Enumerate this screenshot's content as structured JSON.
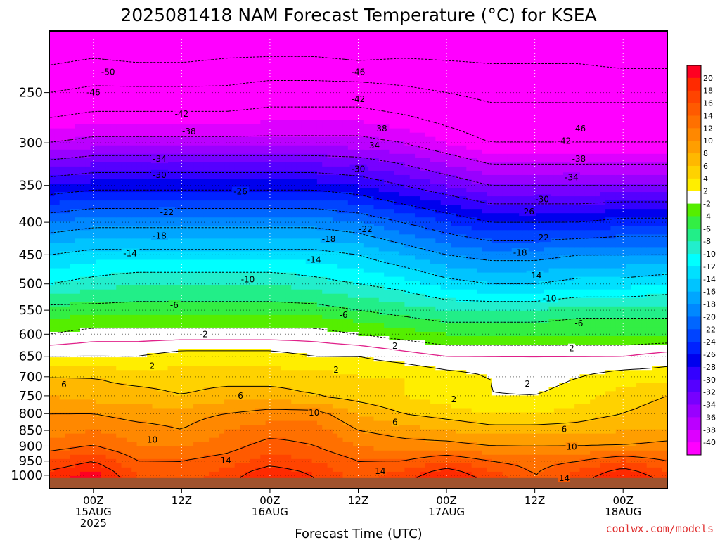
{
  "chart_data": {
    "type": "heatmap",
    "title": "2025081418 NAM Forecast Temperature (°C) for KSEA",
    "xlabel": "Forecast Time (UTC)",
    "ylabel": "",
    "watermark": "coolwx.com/models",
    "x_range_hours": [
      0,
      84
    ],
    "x_ticks": [
      {
        "hour": 6,
        "lines": [
          "00Z",
          "15AUG",
          "2025"
        ]
      },
      {
        "hour": 18,
        "lines": [
          "12Z"
        ]
      },
      {
        "hour": 30,
        "lines": [
          "00Z",
          "16AUG"
        ]
      },
      {
        "hour": 42,
        "lines": [
          "12Z"
        ]
      },
      {
        "hour": 54,
        "lines": [
          "00Z",
          "17AUG"
        ]
      },
      {
        "hour": 66,
        "lines": [
          "12Z"
        ]
      },
      {
        "hour": 78,
        "lines": [
          "00Z",
          "18AUG"
        ]
      }
    ],
    "y_scale": "log-pressure",
    "y_range_hPa": [
      200,
      1050
    ],
    "y_ticks": [
      "250",
      "300",
      "350",
      "400",
      "450",
      "500",
      "550",
      "600",
      "650",
      "700",
      "750",
      "800",
      "850",
      "900",
      "950",
      "1000"
    ],
    "y_tick_values": [
      250,
      300,
      350,
      400,
      450,
      500,
      550,
      600,
      650,
      700,
      750,
      800,
      850,
      900,
      950,
      1000
    ],
    "grid": true,
    "surface_color": "#a0522d",
    "colorbar": {
      "placement": "right",
      "labels": [
        "20",
        "18",
        "16",
        "14",
        "12",
        "10",
        "8",
        "6",
        "4",
        "2",
        "-2",
        "-4",
        "-6",
        "-8",
        "-10",
        "-12",
        "-14",
        "-16",
        "-18",
        "-20",
        "-22",
        "-24",
        "-26",
        "-28",
        "-30",
        "-32",
        "-34",
        "-36",
        "-38",
        "-40"
      ],
      "colors": [
        "#ff0022",
        "#ff2a00",
        "#ff4400",
        "#ff5a00",
        "#ff7000",
        "#ff8800",
        "#ff9e00",
        "#ffb800",
        "#ffd200",
        "#ffee00",
        "#ffffff",
        "#55ee00",
        "#33ee44",
        "#22ee88",
        "#22eecc",
        "#00ffff",
        "#00e0ff",
        "#00c4ff",
        "#00a6ff",
        "#0088ff",
        "#0066ff",
        "#0044ff",
        "#0022ff",
        "#0000ee",
        "#3300ff",
        "#5500ff",
        "#7700ff",
        "#9900ff",
        "#bb00ff",
        "#dd00ff",
        "#ff00ff"
      ]
    },
    "contour_interval_C": 4,
    "series": [
      {
        "level_hPa": 210,
        "values": [
          -53,
          -52,
          -53,
          -53,
          -52,
          -52,
          -52,
          -53,
          -52,
          -52,
          -52,
          -52,
          -52,
          -53,
          -53
        ]
      },
      {
        "level_hPa": 250,
        "values": [
          -46,
          -45,
          -45,
          -45,
          -45,
          -44,
          -44,
          -44,
          -45,
          -46,
          -47,
          -47,
          -47,
          -47,
          -47
        ]
      },
      {
        "level_hPa": 300,
        "values": [
          -38,
          -37,
          -37,
          -37,
          -37,
          -37,
          -37,
          -37,
          -38,
          -40,
          -42,
          -42,
          -42,
          -42,
          -42
        ]
      },
      {
        "level_hPa": 350,
        "values": [
          -28,
          -27,
          -27,
          -27,
          -27,
          -27,
          -27,
          -28,
          -30,
          -32,
          -34,
          -34,
          -34,
          -34,
          -34
        ]
      },
      {
        "level_hPa": 400,
        "values": [
          -20,
          -19,
          -19,
          -19,
          -19,
          -19,
          -19,
          -20,
          -22,
          -24,
          -26,
          -26,
          -26,
          -25,
          -25
        ]
      },
      {
        "level_hPa": 450,
        "values": [
          -14,
          -13,
          -13,
          -13,
          -13,
          -13,
          -13,
          -14,
          -16,
          -18,
          -19,
          -19,
          -18,
          -18,
          -18
        ]
      },
      {
        "level_hPa": 500,
        "values": [
          -10,
          -9,
          -8,
          -8,
          -8,
          -8,
          -9,
          -10,
          -11,
          -13,
          -14,
          -14,
          -13,
          -13,
          -12
        ]
      },
      {
        "level_hPa": 550,
        "values": [
          -5,
          -5,
          -5,
          -5,
          -5,
          -5,
          -5,
          -6,
          -7,
          -8,
          -8,
          -8,
          -7,
          -7,
          -7
        ]
      },
      {
        "level_hPa": 600,
        "values": [
          -2,
          -1,
          -1,
          -1,
          -1,
          -1,
          -1,
          -2,
          -3,
          -4,
          -4,
          -4,
          -4,
          -4,
          -4
        ]
      },
      {
        "level_hPa": 650,
        "values": [
          2,
          2,
          2,
          3,
          3,
          3,
          2,
          2,
          1,
          0,
          0,
          0,
          0,
          0,
          1
        ]
      },
      {
        "level_hPa": 700,
        "values": [
          6,
          6,
          5,
          5,
          5,
          5,
          5,
          4,
          4,
          3,
          2,
          1,
          2,
          3,
          3
        ]
      },
      {
        "level_hPa": 750,
        "values": [
          8,
          7,
          7,
          6,
          7,
          7,
          6,
          5,
          4,
          3,
          2,
          2,
          3,
          5,
          6
        ]
      },
      {
        "level_hPa": 800,
        "values": [
          10,
          10,
          9,
          9,
          10,
          11,
          11,
          8,
          6,
          5,
          4,
          4,
          5,
          6,
          7
        ]
      },
      {
        "level_hPa": 850,
        "values": [
          11,
          12,
          11,
          10,
          12,
          13,
          13,
          10,
          9,
          8,
          7,
          7,
          7,
          8,
          8
        ]
      },
      {
        "level_hPa": 900,
        "values": [
          13,
          14,
          12,
          12,
          13,
          15,
          14,
          12,
          11,
          11,
          10,
          10,
          10,
          10,
          11
        ]
      },
      {
        "level_hPa": 950,
        "values": [
          16,
          18,
          14,
          14,
          15,
          17,
          16,
          14,
          14,
          16,
          14,
          13,
          14,
          16,
          14
        ]
      },
      {
        "level_hPa": 1000,
        "values": [
          19,
          21,
          16,
          15,
          17,
          20,
          18,
          15,
          17,
          20,
          17,
          14,
          17,
          20,
          17
        ]
      }
    ],
    "series_hours": [
      0,
      6,
      12,
      18,
      24,
      30,
      36,
      42,
      48,
      54,
      60,
      66,
      72,
      78,
      84
    ],
    "contour_labels": [
      {
        "text": "-50",
        "hour": 8,
        "level_hPa": 232
      },
      {
        "text": "-46",
        "hour": 6,
        "level_hPa": 250
      },
      {
        "text": "-46",
        "hour": 42,
        "level_hPa": 232
      },
      {
        "text": "-46",
        "hour": 72,
        "level_hPa": 285
      },
      {
        "text": "-42",
        "hour": 18,
        "level_hPa": 270
      },
      {
        "text": "-42",
        "hour": 42,
        "level_hPa": 256
      },
      {
        "text": "-42",
        "hour": 70,
        "level_hPa": 298
      },
      {
        "text": "-38",
        "hour": 19,
        "level_hPa": 288
      },
      {
        "text": "-38",
        "hour": 45,
        "level_hPa": 285
      },
      {
        "text": "-38",
        "hour": 72,
        "level_hPa": 318
      },
      {
        "text": "-34",
        "hour": 15,
        "level_hPa": 318
      },
      {
        "text": "-34",
        "hour": 44,
        "level_hPa": 303
      },
      {
        "text": "-34",
        "hour": 71,
        "level_hPa": 340
      },
      {
        "text": "-30",
        "hour": 15,
        "level_hPa": 337
      },
      {
        "text": "-30",
        "hour": 42,
        "level_hPa": 330
      },
      {
        "text": "-30",
        "hour": 67,
        "level_hPa": 368
      },
      {
        "text": "-26",
        "hour": 26,
        "level_hPa": 358
      },
      {
        "text": "-26",
        "hour": 65,
        "level_hPa": 385
      },
      {
        "text": "-22",
        "hour": 16,
        "level_hPa": 386
      },
      {
        "text": "-22",
        "hour": 43,
        "level_hPa": 410
      },
      {
        "text": "-22",
        "hour": 67,
        "level_hPa": 423
      },
      {
        "text": "-18",
        "hour": 15,
        "level_hPa": 420
      },
      {
        "text": "-18",
        "hour": 38,
        "level_hPa": 425
      },
      {
        "text": "-18",
        "hour": 64,
        "level_hPa": 447
      },
      {
        "text": "-14",
        "hour": 11,
        "level_hPa": 448
      },
      {
        "text": "-14",
        "hour": 36,
        "level_hPa": 458
      },
      {
        "text": "-14",
        "hour": 66,
        "level_hPa": 485
      },
      {
        "text": "-10",
        "hour": 27,
        "level_hPa": 492
      },
      {
        "text": "-10",
        "hour": 68,
        "level_hPa": 527
      },
      {
        "text": "-6",
        "hour": 17,
        "level_hPa": 540
      },
      {
        "text": "-6",
        "hour": 40,
        "level_hPa": 560
      },
      {
        "text": "-6",
        "hour": 72,
        "level_hPa": 577
      },
      {
        "text": "-2",
        "hour": 21,
        "level_hPa": 600
      },
      {
        "text": "2",
        "hour": 47,
        "level_hPa": 626
      },
      {
        "text": "2",
        "hour": 71,
        "level_hPa": 632
      },
      {
        "text": "2",
        "hour": 14,
        "level_hPa": 673
      },
      {
        "text": "2",
        "hour": 39,
        "level_hPa": 683
      },
      {
        "text": "2",
        "hour": 65,
        "level_hPa": 718
      },
      {
        "text": "2",
        "hour": 55,
        "level_hPa": 760
      },
      {
        "text": "6",
        "hour": 2,
        "level_hPa": 720
      },
      {
        "text": "6",
        "hour": 26,
        "level_hPa": 750
      },
      {
        "text": "6",
        "hour": 47,
        "level_hPa": 825
      },
      {
        "text": "6",
        "hour": 70,
        "level_hPa": 847
      },
      {
        "text": "10",
        "hour": 36,
        "level_hPa": 797
      },
      {
        "text": "10",
        "hour": 14,
        "level_hPa": 880
      },
      {
        "text": "10",
        "hour": 71,
        "level_hPa": 902
      },
      {
        "text": "14",
        "hour": 24,
        "level_hPa": 948
      },
      {
        "text": "14",
        "hour": 45,
        "level_hPa": 985
      },
      {
        "text": "14",
        "hour": 70,
        "level_hPa": 1010
      }
    ]
  }
}
